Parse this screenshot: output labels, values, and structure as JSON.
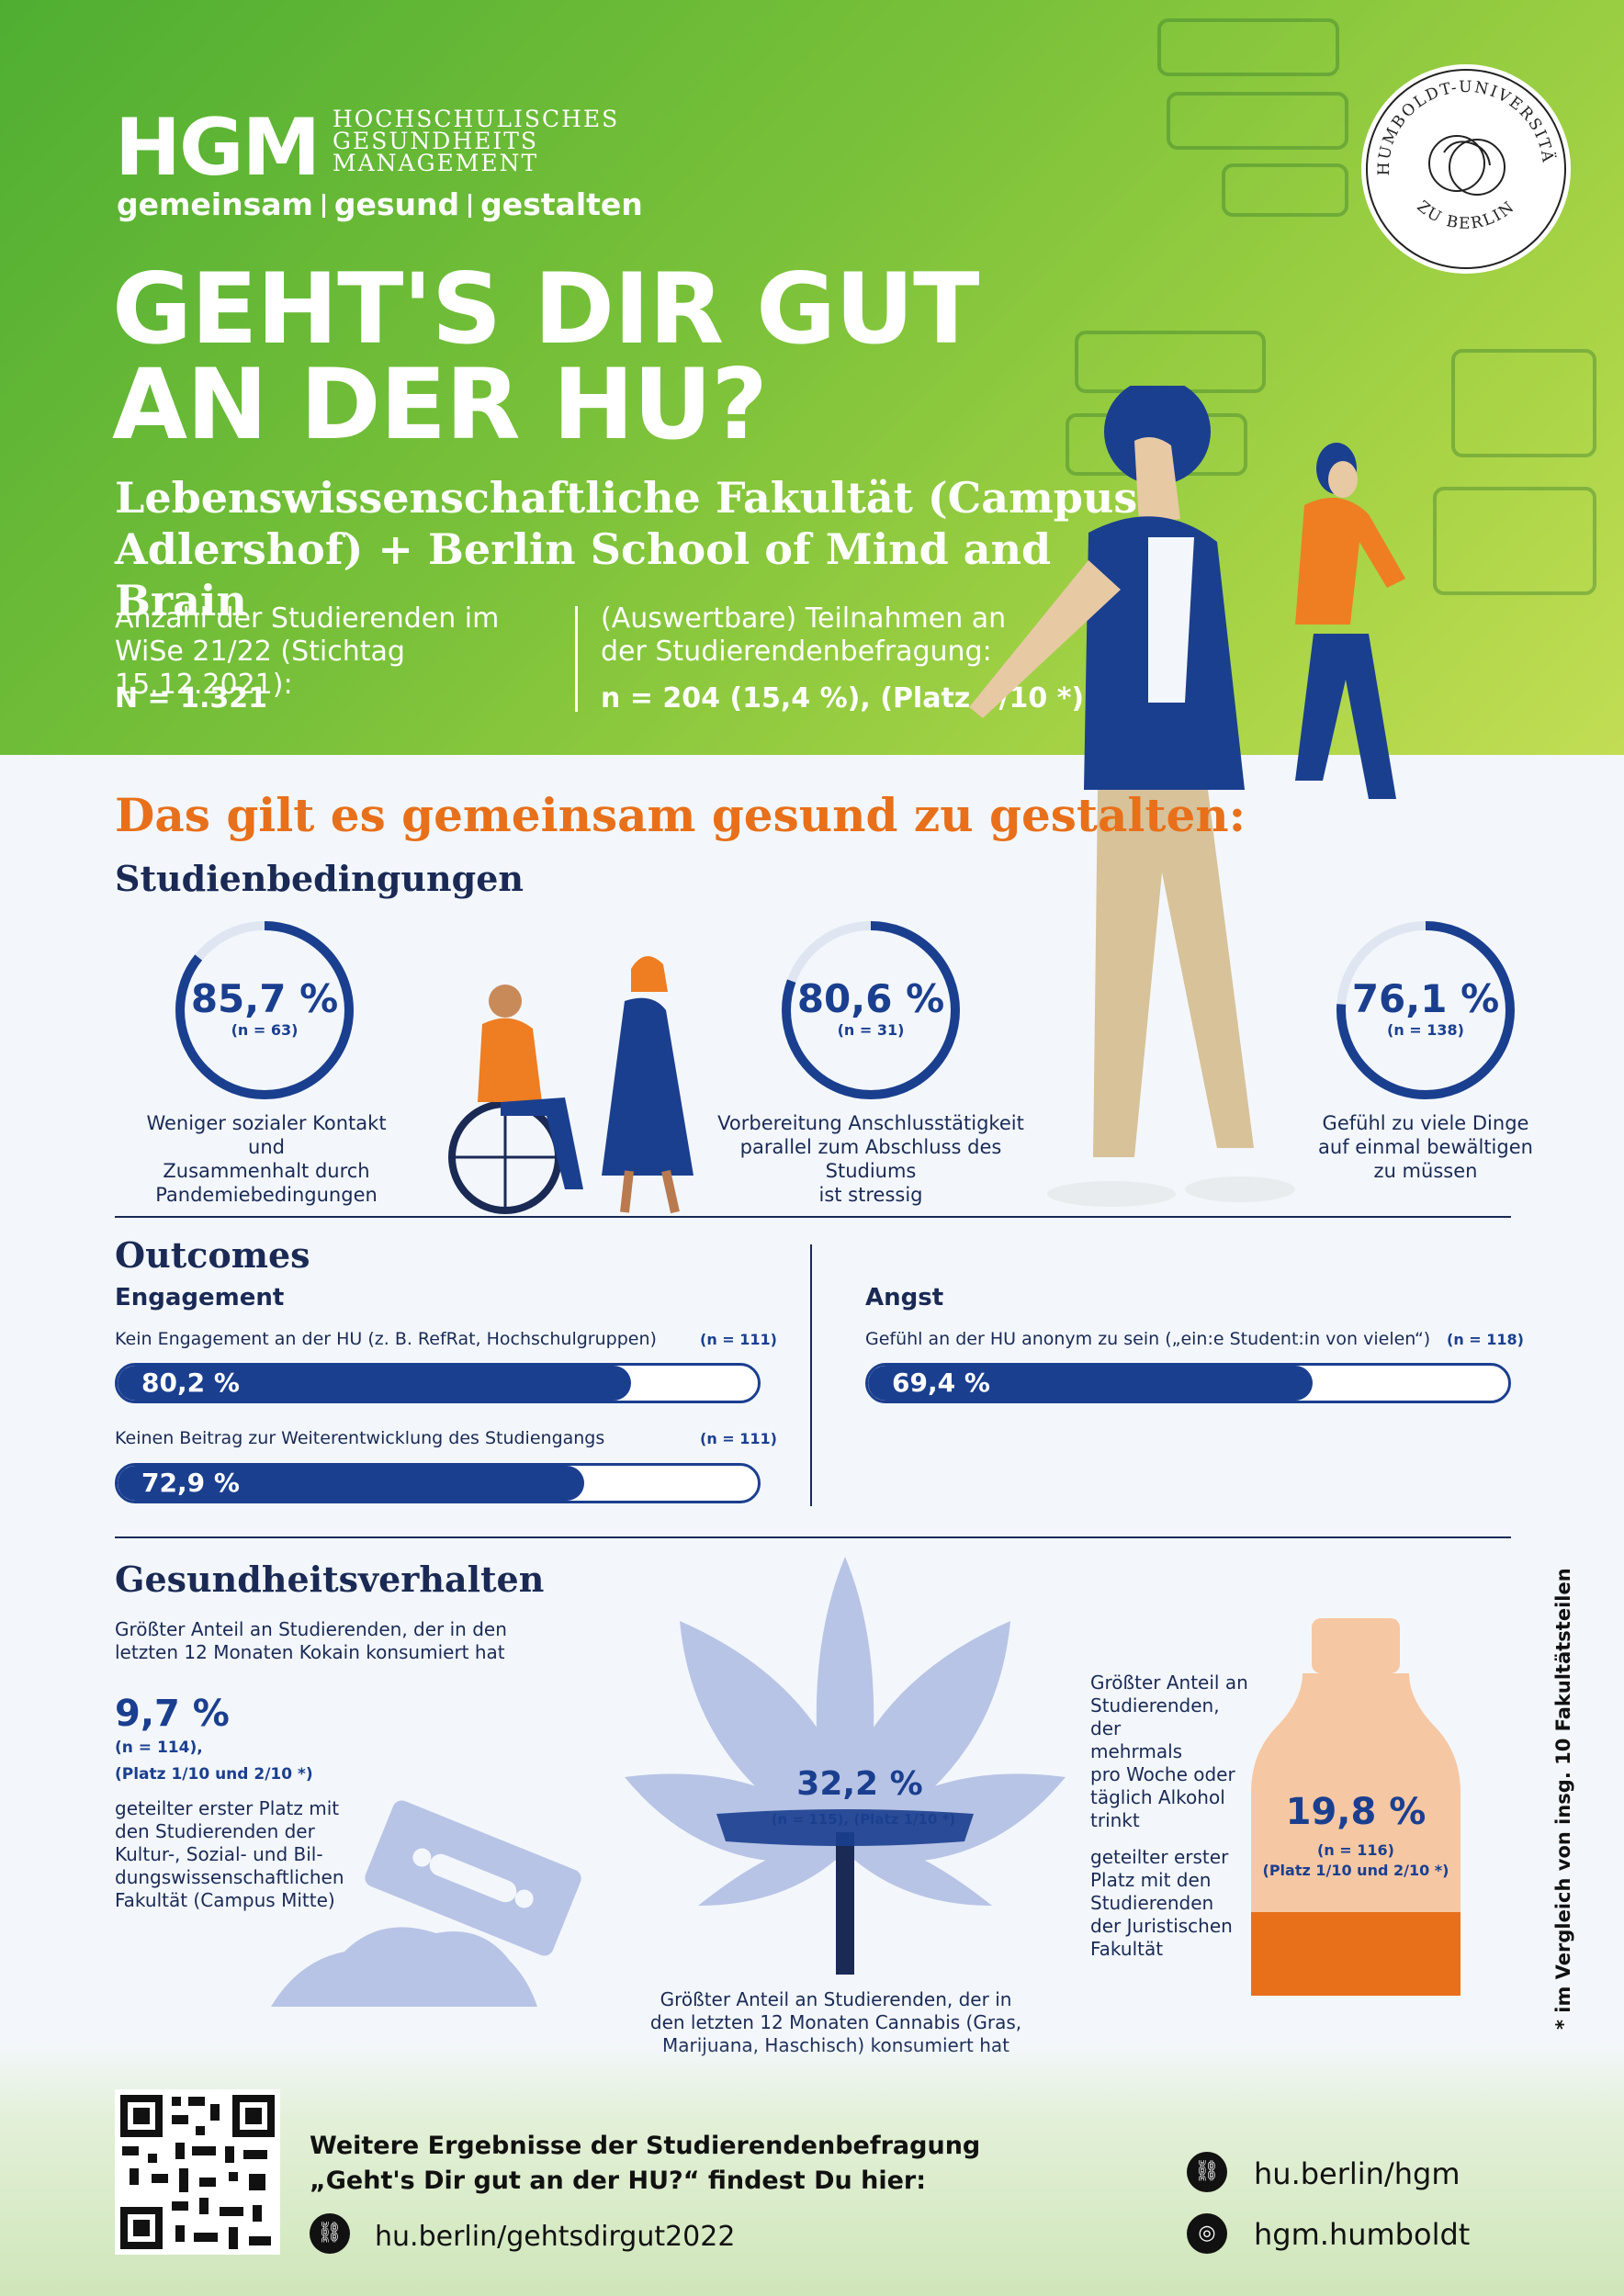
{
  "header": {
    "logo": "HGM",
    "logo_sub": [
      "HOCHSCHULISCHES",
      "GESUNDHEITS",
      "MANAGEMENT"
    ],
    "tagline": [
      "gemeinsam",
      "gesund",
      "gestalten"
    ],
    "title_lines": [
      "GEHT'S DIR GUT",
      "AN DER HU?"
    ],
    "subtitle": "Lebenswissenschaftliche Fakultät (Campus Adlershof) + Berlin School of Mind and Brain",
    "stat_left_label": "Anzahl der Studierenden im WiSe 21/22 (Stichtag 15.12.2021):",
    "stat_left_value": "N = 1.321",
    "stat_right_label": "(Auswertbare) Teilnahmen an der Studierendenbefragung:",
    "stat_right_value": "n = 204 (15,4 %), (Platz 4/10 *)",
    "seal_top": "HUMBOLDT-UNIVERSITÄT",
    "seal_bottom": "ZU BERLIN"
  },
  "section": {
    "heading": "Das gilt es gemeinsam gesund zu gestalten:",
    "studienbedingungen": {
      "title": "Studienbedingungen",
      "items": [
        {
          "value": "85,7 %",
          "n": "(n = 63)",
          "fraction": 0.857,
          "caption": [
            "Weniger sozialer Kontakt und",
            "Zusammenhalt durch",
            "Pandemiebedingungen"
          ]
        },
        {
          "value": "80,6 %",
          "n": "(n = 31)",
          "fraction": 0.806,
          "caption": [
            "Vorbereitung Anschlusstätigkeit",
            "parallel zum Abschluss des Studiums",
            "ist stressig"
          ]
        },
        {
          "value": "76,1 %",
          "n": "(n = 138)",
          "fraction": 0.761,
          "caption": [
            "Gefühl zu viele Dinge",
            "auf einmal bewältigen",
            "zu müssen"
          ]
        }
      ]
    },
    "outcomes": {
      "title": "Outcomes",
      "engagement": {
        "title": "Engagement",
        "bars": [
          {
            "label": "Kein Engagement an der HU (z. B. RefRat, Hochschulgruppen)",
            "n": "(n = 111)",
            "value": "80,2 %",
            "fraction": 0.802
          },
          {
            "label": "Keinen Beitrag zur Weiterentwicklung des Studiengangs",
            "n": "(n = 111)",
            "value": "72,9 %",
            "fraction": 0.729
          }
        ]
      },
      "angst": {
        "title": "Angst",
        "bars": [
          {
            "label": "Gefühl an der HU anonym zu sein („ein:e Student:in von vielen“)",
            "n": "(n = 118)",
            "value": "69,4 %",
            "fraction": 0.694
          }
        ]
      }
    },
    "gesundheit": {
      "title": "Gesundheitsverhalten",
      "kokain": {
        "intro": [
          "Größter Anteil an Studierenden, der in den",
          "letzten 12 Monaten Kokain konsumiert hat"
        ],
        "value": "9,7 %",
        "n": "(n = 114),",
        "rank": "(Platz 1/10 und 2/10 *)",
        "note": [
          "geteilter erster Platz mit",
          "den Studierenden der",
          "Kultur-, Sozial- und Bil-",
          "dungswissenschaftlichen",
          "Fakultät (Campus Mitte)"
        ]
      },
      "cannabis": {
        "value": "32,2 %",
        "n": "(n = 115), (Platz 1/10 *)",
        "caption": [
          "Größter Anteil an Studierenden, der in",
          "den letzten 12 Monaten Cannabis (Gras,",
          "Marijuana, Haschisch) konsumiert hat"
        ]
      },
      "alkohol": {
        "intro": [
          "Größter Anteil an",
          "Studierenden, der",
          "mehrmals",
          "pro Woche oder",
          "täglich Alkohol",
          "trinkt"
        ],
        "note": [
          "geteilter erster",
          "Platz mit den",
          "Studierenden",
          "der Juristischen",
          "Fakultät"
        ],
        "value": "19,8 %",
        "n": "(n = 116)",
        "rank": "(Platz 1/10 und 2/10 *)"
      }
    },
    "side_note": "* im Vergleich von insg. 10 Fakultätsteilen"
  },
  "footer": {
    "text_lines": [
      "Weitere Ergebnisse der Studierendenbefragung",
      "„Geht's Dir gut an der HU?“ findest Du hier:"
    ],
    "link_main": "hu.berlin/gehtsdirgut2022",
    "link_hgm": "hu.berlin/hgm",
    "instagram": "hgm.humboldt"
  },
  "colors": {
    "green": "#5fb534",
    "orange": "#e8701a",
    "navy": "#1a2a55",
    "blue": "#1b3f8f"
  }
}
